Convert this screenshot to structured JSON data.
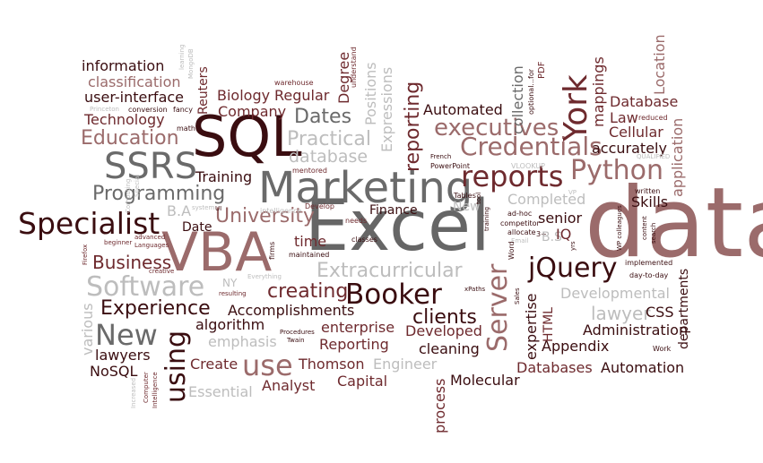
{
  "colors": {
    "dark": "#3a0d10",
    "maroon": "#6e2a2e",
    "rose": "#9b6b6b",
    "gray": "#6a6a6a",
    "lightgray": "#bdbdbd",
    "black": "#1c1c1c"
  },
  "words": {
    "data": "data",
    "excel": "Excel",
    "vba": "VBA",
    "sql": "SQL",
    "marketing": "Marketing",
    "ssrs": "SSRS",
    "specialist": "Specialist",
    "reports": "reports",
    "python": "Python",
    "york": "York",
    "booker": "Booker",
    "jquery": "jQuery",
    "server": "Server",
    "using": "using",
    "new": "New",
    "software": "Software",
    "use": "use",
    "credentials": "Credentials",
    "executives": "executives",
    "education": "Education",
    "programming": "Programming",
    "university": "University",
    "business": "Business",
    "experience": "Experience",
    "clients": "clients",
    "extracurricular": "Extracurricular",
    "creating": "creating",
    "practical": "Practical",
    "database_lower": "database",
    "dates": "Dates",
    "reporting_vertical": "reporting",
    "information": "information",
    "classification": "classification",
    "user_interface": "user-interface",
    "technology": "Technology",
    "biology": "Biology",
    "regular": "Regular",
    "company": "Company",
    "reuters": "Reuters",
    "degree": "Degree",
    "positions": "Positions",
    "expressions": "Expressions",
    "automated": "Automated",
    "collection": "collection",
    "database": "Database",
    "law": "Law",
    "cellular": "Cellular",
    "accurately": "accurately",
    "location": "Location",
    "application": "application",
    "mappings": "mappings",
    "training": "Training",
    "ba": "B.A",
    "date": "Date",
    "time": "time",
    "finance": "Finance",
    "completed": "Completed",
    "skills": "Skills",
    "senior": "senior",
    "bs": "B.S",
    "iq": "IQ",
    "developmental": "Developmental",
    "lawyer": "lawyer",
    "css": "CSS",
    "administration": "Administration",
    "appendix": "Appendix",
    "automation": "Automation",
    "databases": "Databases",
    "molecular": "Molecular",
    "cleaning": "cleaning",
    "developed": "Developed",
    "reporting": "Reporting",
    "enterprise": "enterprise",
    "accomplishments": "Accomplishments",
    "algorithm": "algorithm",
    "emphasis": "emphasis",
    "thomson": "Thomson",
    "engineer": "Engineer",
    "capital": "Capital",
    "analyst": "Analyst",
    "create": "Create",
    "lawyers": "lawyers",
    "nosql": "NoSQL",
    "essential": "Essential",
    "html": "HTML",
    "expertise": "expertise",
    "process": "process",
    "departments": "departments",
    "ny": "NY",
    "various": "various",
    "mongodb": "MongoDB",
    "learning": "learning",
    "conversion": "conversion",
    "fancy": "fancy",
    "princeton": "Princeton",
    "math": "math",
    "warehouse": "warehouse",
    "understand": "understand",
    "optional": "optional...for",
    "pdf": "PDF",
    "french": "French",
    "powerpoint": "PowerPoint",
    "vlookup": "VLOOKUP",
    "mentored": "mentored",
    "develop": "Develop",
    "intelligence": "intelligence",
    "system": "system",
    "ui": "UI",
    "qualified": "QUALIFIED",
    "reduced": "reduced",
    "written": "written",
    "wp_colleagues": "WP colleagues",
    "content": "content",
    "search": "search",
    "vp": "VP",
    "tables": "Tables",
    "tool": "tool",
    "training_small": "training",
    "ad_hoc": "ad-hoc",
    "needs": "needs",
    "classes": "classes",
    "allocate": "allocate",
    "competitor": "competitor",
    "email": "Email",
    "word": "Word",
    "three_plus": "3+",
    "yrs": "yrs",
    "implemented": "implemented",
    "day_to_day": "day-to-day",
    "beginner": "beginner",
    "advanced": "advanced",
    "languages": "Languages",
    "firefox": "Firefox",
    "creative": "creative",
    "firms": "firms",
    "maintained": "maintained",
    "everything": "Everything",
    "resulting": "resulting",
    "xpaths": "xPaths",
    "sales": "Sales",
    "procedures": "Procedures",
    "twain": "Twain",
    "work": "Work",
    "computing": "Computing",
    "special": "Special",
    "computer": "Computer",
    "intelligence2": "Intelligence",
    "increased": "Increased"
  }
}
